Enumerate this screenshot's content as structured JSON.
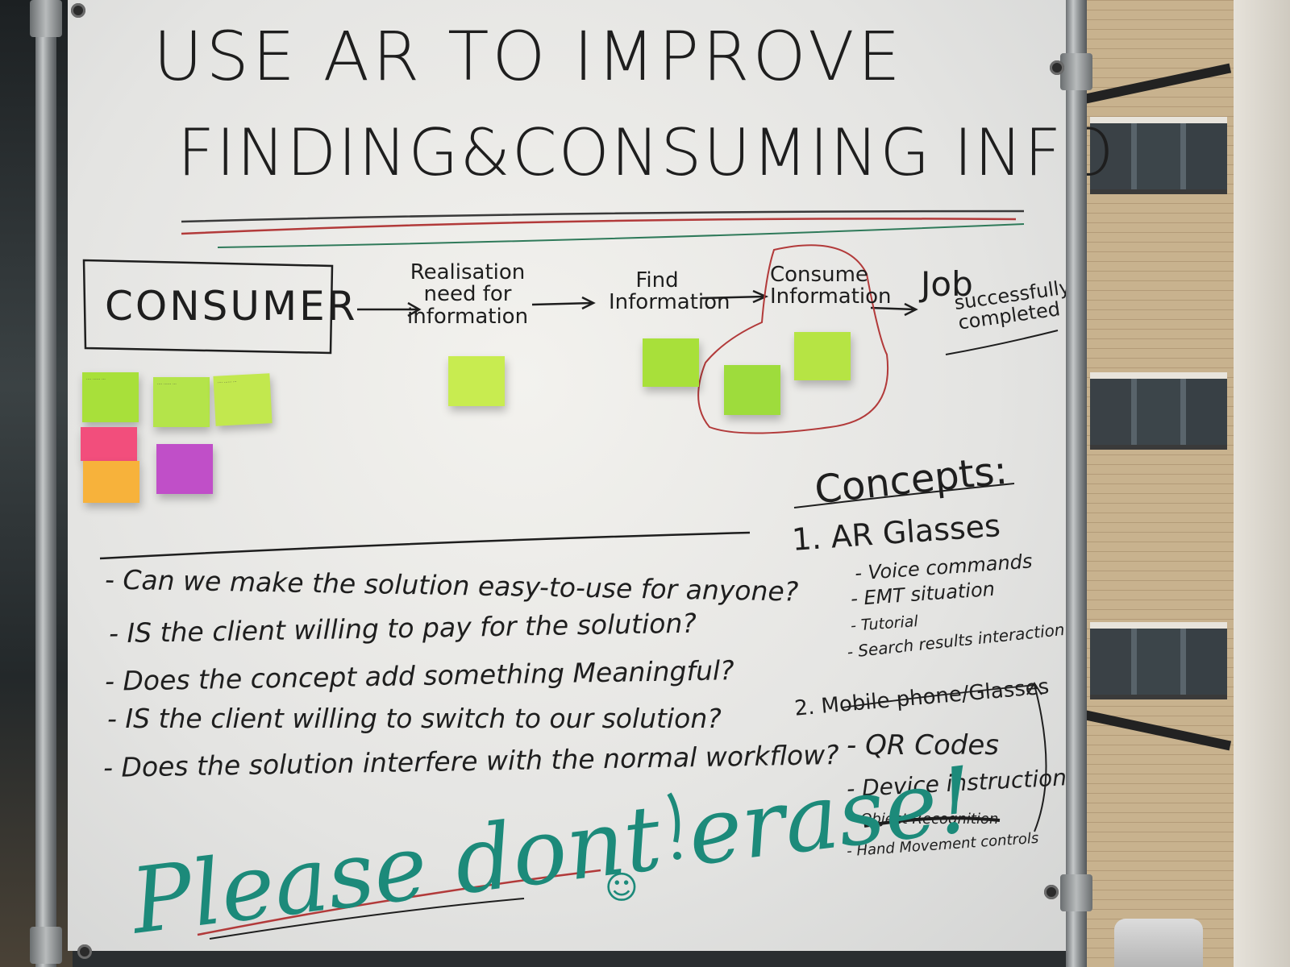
{
  "title": {
    "line1": "USE AR TO IMPROVE",
    "line2": "FINDING&CONSUMING INFO"
  },
  "flow": {
    "consumer": "CONSUMER",
    "step1": "Realisation need for information",
    "step2": "Find Information",
    "step3": "Consume Information",
    "step4_a": "Job",
    "step4_b": "successfully completed"
  },
  "questions": [
    "- Can we make the solution easy-to-use for anyone?",
    "- IS the client willing to pay for the solution?",
    "- Does the concept add something Meaningful?",
    "- IS the client willing to switch to our solution?",
    "- Does the solution interfere with the normal workflow?"
  ],
  "concepts": {
    "heading": "Concepts:",
    "c1": {
      "label": "1. AR Glasses",
      "items": [
        "- Voice commands",
        "- EMT situation",
        "- Tutorial",
        "- Search results interaction"
      ]
    },
    "c2": {
      "label": "2. Mobile phone/Glasses",
      "items": [
        "- QR Codes",
        "- Device instructions",
        "- Object Recognition",
        "- Hand Movement controls"
      ]
    }
  },
  "footer": {
    "please": "Please dont erase!",
    "smiley": "☺"
  },
  "colors": {
    "marker_black": "#1e1e1e",
    "marker_red": "#b23a3a",
    "marker_teal": "#1c8a7a",
    "note_green": "#a8e03a",
    "note_pink": "#f24e7c",
    "note_orange": "#f7b23b",
    "note_purple": "#c04fc8"
  }
}
